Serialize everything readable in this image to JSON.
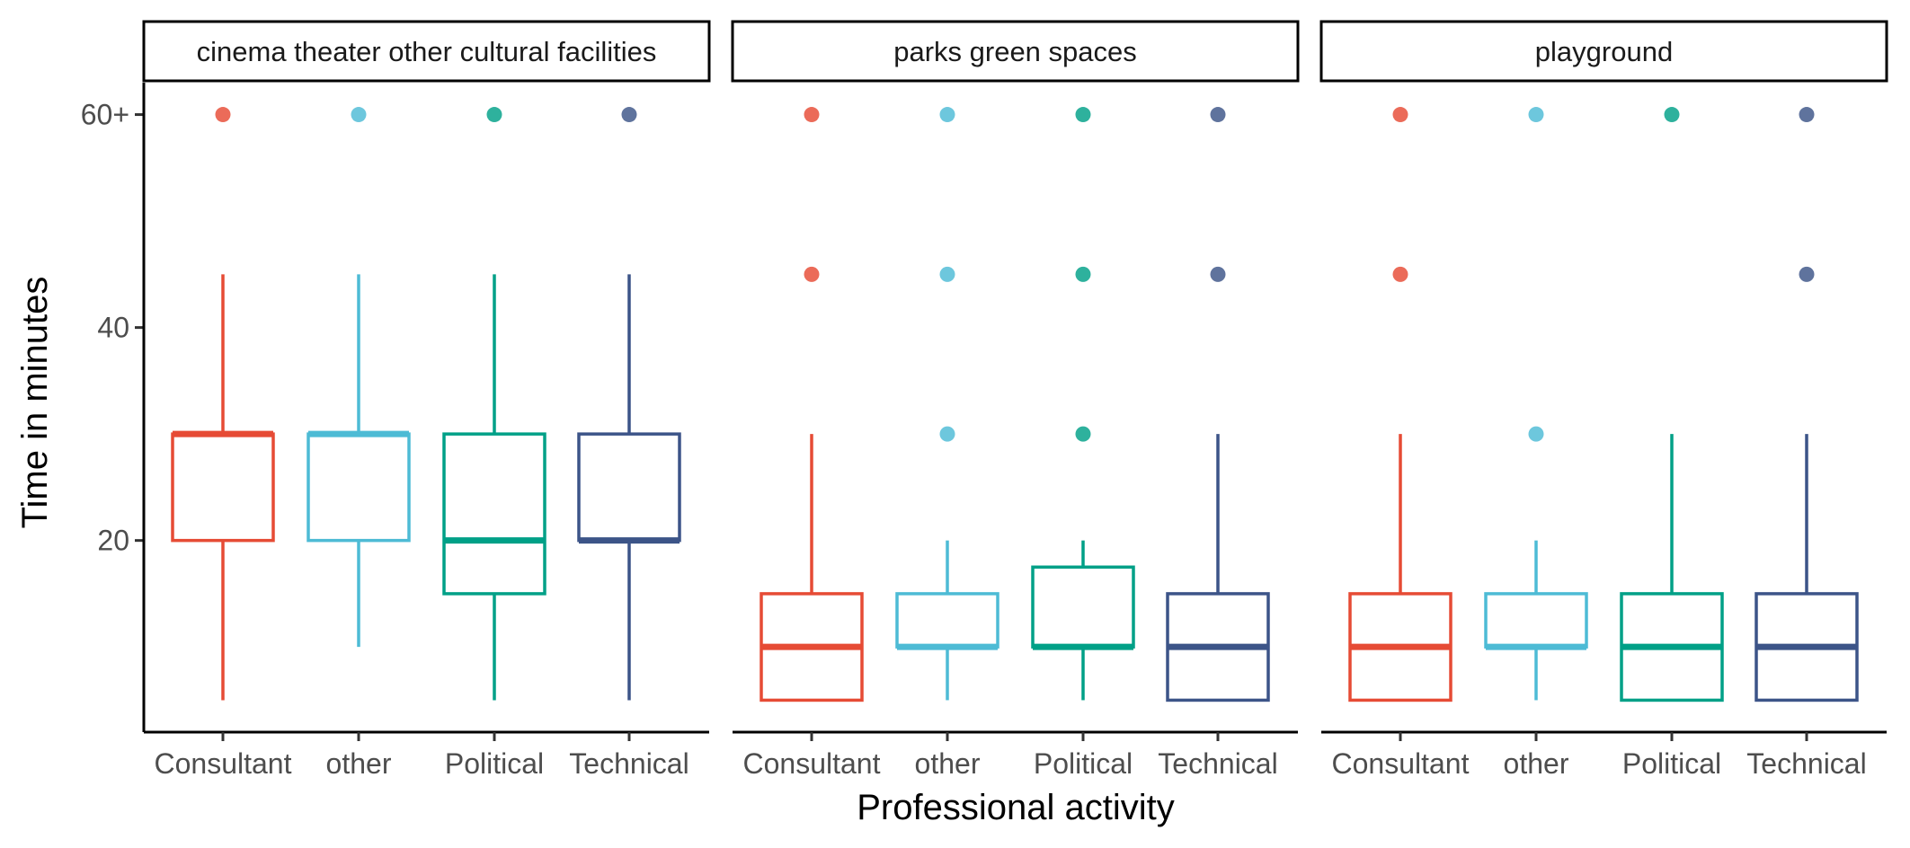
{
  "chart_data": {
    "type": "boxplot",
    "xlabel": "Professional activity",
    "ylabel": "Time in minutes",
    "ylim": [
      2,
      63
    ],
    "yticks": [
      {
        "value": 20,
        "label": "20"
      },
      {
        "value": 40,
        "label": "40"
      },
      {
        "value": 60,
        "label": "60+"
      }
    ],
    "categories": [
      "Consultant",
      "other",
      "Political",
      "Technical"
    ],
    "colors": {
      "Consultant": "#E64B35",
      "other": "#4DBBD5",
      "Political": "#00A087",
      "Technical": "#3C5488"
    },
    "grid": false,
    "legend": "none",
    "facets": [
      {
        "title": "cinema theater other cultural facilities",
        "boxes": [
          {
            "category": "Consultant",
            "min": 5,
            "q1": 20,
            "median": 30,
            "q3": 30,
            "max": 45,
            "outliers": [
              60
            ]
          },
          {
            "category": "other",
            "min": 10,
            "q1": 20,
            "median": 30,
            "q3": 30,
            "max": 45,
            "outliers": [
              60
            ]
          },
          {
            "category": "Political",
            "min": 5,
            "q1": 15,
            "median": 20,
            "q3": 30,
            "max": 45,
            "outliers": [
              60
            ]
          },
          {
            "category": "Technical",
            "min": 5,
            "q1": 20,
            "median": 20,
            "q3": 30,
            "max": 45,
            "outliers": [
              60
            ]
          }
        ]
      },
      {
        "title": "parks green spaces",
        "boxes": [
          {
            "category": "Consultant",
            "min": 5,
            "q1": 5,
            "median": 10,
            "q3": 15,
            "max": 30,
            "outliers": [
              45,
              60
            ]
          },
          {
            "category": "other",
            "min": 5,
            "q1": 10,
            "median": 10,
            "q3": 15,
            "max": 20,
            "outliers": [
              30,
              45,
              60
            ]
          },
          {
            "category": "Political",
            "min": 5,
            "q1": 10,
            "median": 10,
            "q3": 17.5,
            "max": 20,
            "outliers": [
              30,
              45,
              60
            ]
          },
          {
            "category": "Technical",
            "min": 5,
            "q1": 5,
            "median": 10,
            "q3": 15,
            "max": 30,
            "outliers": [
              45,
              60
            ]
          }
        ]
      },
      {
        "title": "playground",
        "boxes": [
          {
            "category": "Consultant",
            "min": 5,
            "q1": 5,
            "median": 10,
            "q3": 15,
            "max": 30,
            "outliers": [
              45,
              60
            ]
          },
          {
            "category": "other",
            "min": 5,
            "q1": 10,
            "median": 10,
            "q3": 15,
            "max": 20,
            "outliers": [
              30,
              60
            ]
          },
          {
            "category": "Political",
            "min": 5,
            "q1": 5,
            "median": 10,
            "q3": 15,
            "max": 30,
            "outliers": [
              60
            ]
          },
          {
            "category": "Technical",
            "min": 5,
            "q1": 5,
            "median": 10,
            "q3": 15,
            "max": 30,
            "outliers": [
              45,
              60
            ]
          }
        ]
      }
    ]
  }
}
